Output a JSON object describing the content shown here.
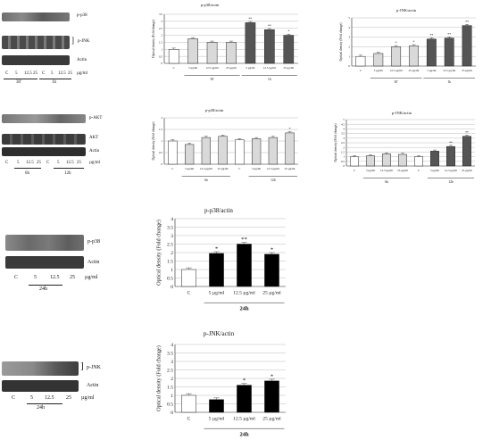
{
  "blots": [
    {
      "labels": [
        "p-p38",
        "p-JNK",
        "Actin"
      ],
      "lanes": [
        "C",
        "5",
        "12.5",
        "25",
        "C",
        "5",
        "12.5",
        "25"
      ],
      "unit": "µg/ml",
      "groups": [
        "30'",
        "1h"
      ]
    },
    {
      "labels": [
        "p-AKT",
        "AKT",
        "Actin"
      ],
      "lanes": [
        "C",
        "5",
        "12.5",
        "25",
        "C",
        "5",
        "12.5",
        "25"
      ],
      "unit": "µg/ml",
      "groups": [
        "6h",
        "12h"
      ]
    },
    {
      "labels": [
        "p-p38",
        "Actin"
      ],
      "lanes": [
        "C",
        "5",
        "12.5",
        "25"
      ],
      "unit": "µg/ml",
      "groups": [
        "24h"
      ]
    },
    {
      "labels": [
        "p-JNK",
        "Actin"
      ],
      "lanes": [
        "C",
        "5",
        "12.5",
        "25"
      ],
      "unit": "µg/ml",
      "groups": [
        "24h"
      ]
    }
  ],
  "chart_data": [
    {
      "type": "bar",
      "title": "p-p38/actin",
      "ylabel": "Optical density (Fold change)",
      "ylim": [
        0,
        3.5
      ],
      "yticks": [
        0,
        0.5,
        1,
        1.5,
        2,
        2.5,
        3,
        3.5
      ],
      "categories": [
        "C",
        "5 µg/ml",
        "12.5 µg/ml",
        "25 µg/ml",
        "5 µg/ml",
        "12.5 µg/ml",
        "25 µg/ml"
      ],
      "values": [
        1.0,
        1.75,
        1.5,
        1.5,
        2.9,
        2.4,
        2.0
      ],
      "fills": [
        "#ffffff",
        "#d9d9d9",
        "#d9d9d9",
        "#d9d9d9",
        "#555555",
        "#555555",
        "#555555"
      ],
      "significance": [
        "",
        "",
        "",
        "",
        "**",
        "**",
        "*"
      ],
      "groups": [
        {
          "label": "30'",
          "from": 1,
          "to": 3
        },
        {
          "label": "1h",
          "from": 4,
          "to": 6
        }
      ]
    },
    {
      "type": "bar",
      "title": "p-JNK/actin",
      "ylabel": "Optical density (Fold change)",
      "ylim": [
        0,
        5
      ],
      "yticks": [
        0,
        1,
        2,
        3,
        4,
        5
      ],
      "categories": [
        "C",
        "5 µg/ml",
        "12.5 µg/ml",
        "25 µg/ml",
        "5 µg/ml",
        "12.5 µg/ml",
        "25 µg/ml"
      ],
      "values": [
        1.0,
        1.3,
        2.0,
        2.1,
        2.8,
        2.9,
        4.2
      ],
      "fills": [
        "#ffffff",
        "#d9d9d9",
        "#d9d9d9",
        "#d9d9d9",
        "#555555",
        "#555555",
        "#555555"
      ],
      "significance": [
        "",
        "",
        "*",
        "*",
        "**",
        "**",
        "**"
      ],
      "groups": [
        {
          "label": "30'",
          "from": 1,
          "to": 3
        },
        {
          "label": "1h",
          "from": 4,
          "to": 6
        }
      ]
    },
    {
      "type": "bar",
      "title": "p-p38/actin",
      "ylabel": "Optical density (Fold change)",
      "ylim": [
        0,
        2
      ],
      "yticks": [
        0,
        0.5,
        1,
        1.5,
        2
      ],
      "categories": [
        "C",
        "5 µg/ml",
        "12.5 µg/ml",
        "25 µg/ml",
        "C",
        "5 µg/ml",
        "12.5 µg/ml",
        "25 µg/ml"
      ],
      "values": [
        1.0,
        0.85,
        1.15,
        1.2,
        1.05,
        1.1,
        1.15,
        1.35
      ],
      "fills": [
        "#ffffff",
        "#d9d9d9",
        "#d9d9d9",
        "#d9d9d9",
        "#ffffff",
        "#d9d9d9",
        "#d9d9d9",
        "#d9d9d9"
      ],
      "significance": [
        "",
        "",
        "",
        "",
        "",
        "",
        "",
        "*"
      ],
      "groups": [
        {
          "label": "6h",
          "from": 1,
          "to": 3
        },
        {
          "label": "12h",
          "from": 5,
          "to": 7
        }
      ]
    },
    {
      "type": "bar",
      "title": "p-JNK/actin",
      "ylabel": "Optical density (Fold change)",
      "ylim": [
        0,
        5
      ],
      "yticks": [
        0,
        0.5,
        1,
        1.5,
        2,
        2.5,
        3,
        3.5,
        4,
        4.5,
        5
      ],
      "categories": [
        "C",
        "5 µg/ml",
        "12.5 µg/ml",
        "25 µg/ml",
        "C",
        "5 µg/ml",
        "12.5 µg/ml",
        "25 µg/ml"
      ],
      "values": [
        1.0,
        1.1,
        1.3,
        1.25,
        1.0,
        1.6,
        2.1,
        3.2
      ],
      "fills": [
        "#ffffff",
        "#d9d9d9",
        "#d9d9d9",
        "#d9d9d9",
        "#ffffff",
        "#555555",
        "#555555",
        "#555555"
      ],
      "significance": [
        "",
        "",
        "",
        "",
        "",
        "",
        "**",
        "**"
      ],
      "groups": [
        {
          "label": "6h",
          "from": 1,
          "to": 3
        },
        {
          "label": "12h",
          "from": 5,
          "to": 7
        }
      ]
    },
    {
      "type": "bar",
      "title": "p-p38/actin",
      "ylabel": "Optical density (Fold change)",
      "ylim": [
        0,
        4
      ],
      "yticks": [
        0,
        0.5,
        1,
        1.5,
        2,
        2.5,
        3,
        3.5,
        4
      ],
      "categories": [
        "C",
        "5 µg/ml",
        "12.5 µg/ml",
        "25 µg/ml"
      ],
      "values": [
        1.0,
        1.95,
        2.5,
        1.9
      ],
      "fills": [
        "#ffffff",
        "#000000",
        "#000000",
        "#000000"
      ],
      "significance": [
        "",
        "*",
        "**",
        "*"
      ],
      "groups": [
        {
          "label": "24h",
          "from": 1,
          "to": 3
        }
      ]
    },
    {
      "type": "bar",
      "title": "p-JNK/actin",
      "ylabel": "Optical density (Fold change)",
      "ylim": [
        0,
        4
      ],
      "yticks": [
        0,
        0.5,
        1,
        1.5,
        2,
        2.5,
        3,
        3.5,
        4
      ],
      "categories": [
        "C",
        "5 µg/ml",
        "12.5 µg/ml",
        "25 µg/ml"
      ],
      "values": [
        1.0,
        0.75,
        1.6,
        1.85
      ],
      "fills": [
        "#ffffff",
        "#000000",
        "#000000",
        "#000000"
      ],
      "significance": [
        "",
        "",
        "*",
        "*"
      ],
      "groups": [
        {
          "label": "24h",
          "from": 1,
          "to": 3
        }
      ]
    }
  ]
}
